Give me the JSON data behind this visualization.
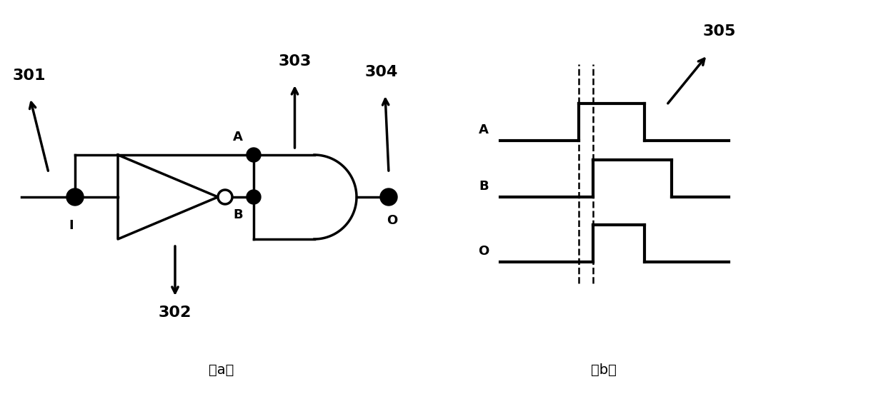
{
  "fig_width": 12.4,
  "fig_height": 5.52,
  "bg_color": "#ffffff",
  "line_color": "#000000",
  "lw": 2.5,
  "lw_sig": 3.0,
  "labels_301": "301",
  "labels_302": "302",
  "labels_303": "303",
  "labels_304": "304",
  "labels_305": "305",
  "label_I": "I",
  "label_A": "A",
  "label_B": "B",
  "label_O": "O",
  "label_a": "（a）",
  "label_b": "（b）",
  "fontsize_ref": 16,
  "fontsize_label": 13
}
